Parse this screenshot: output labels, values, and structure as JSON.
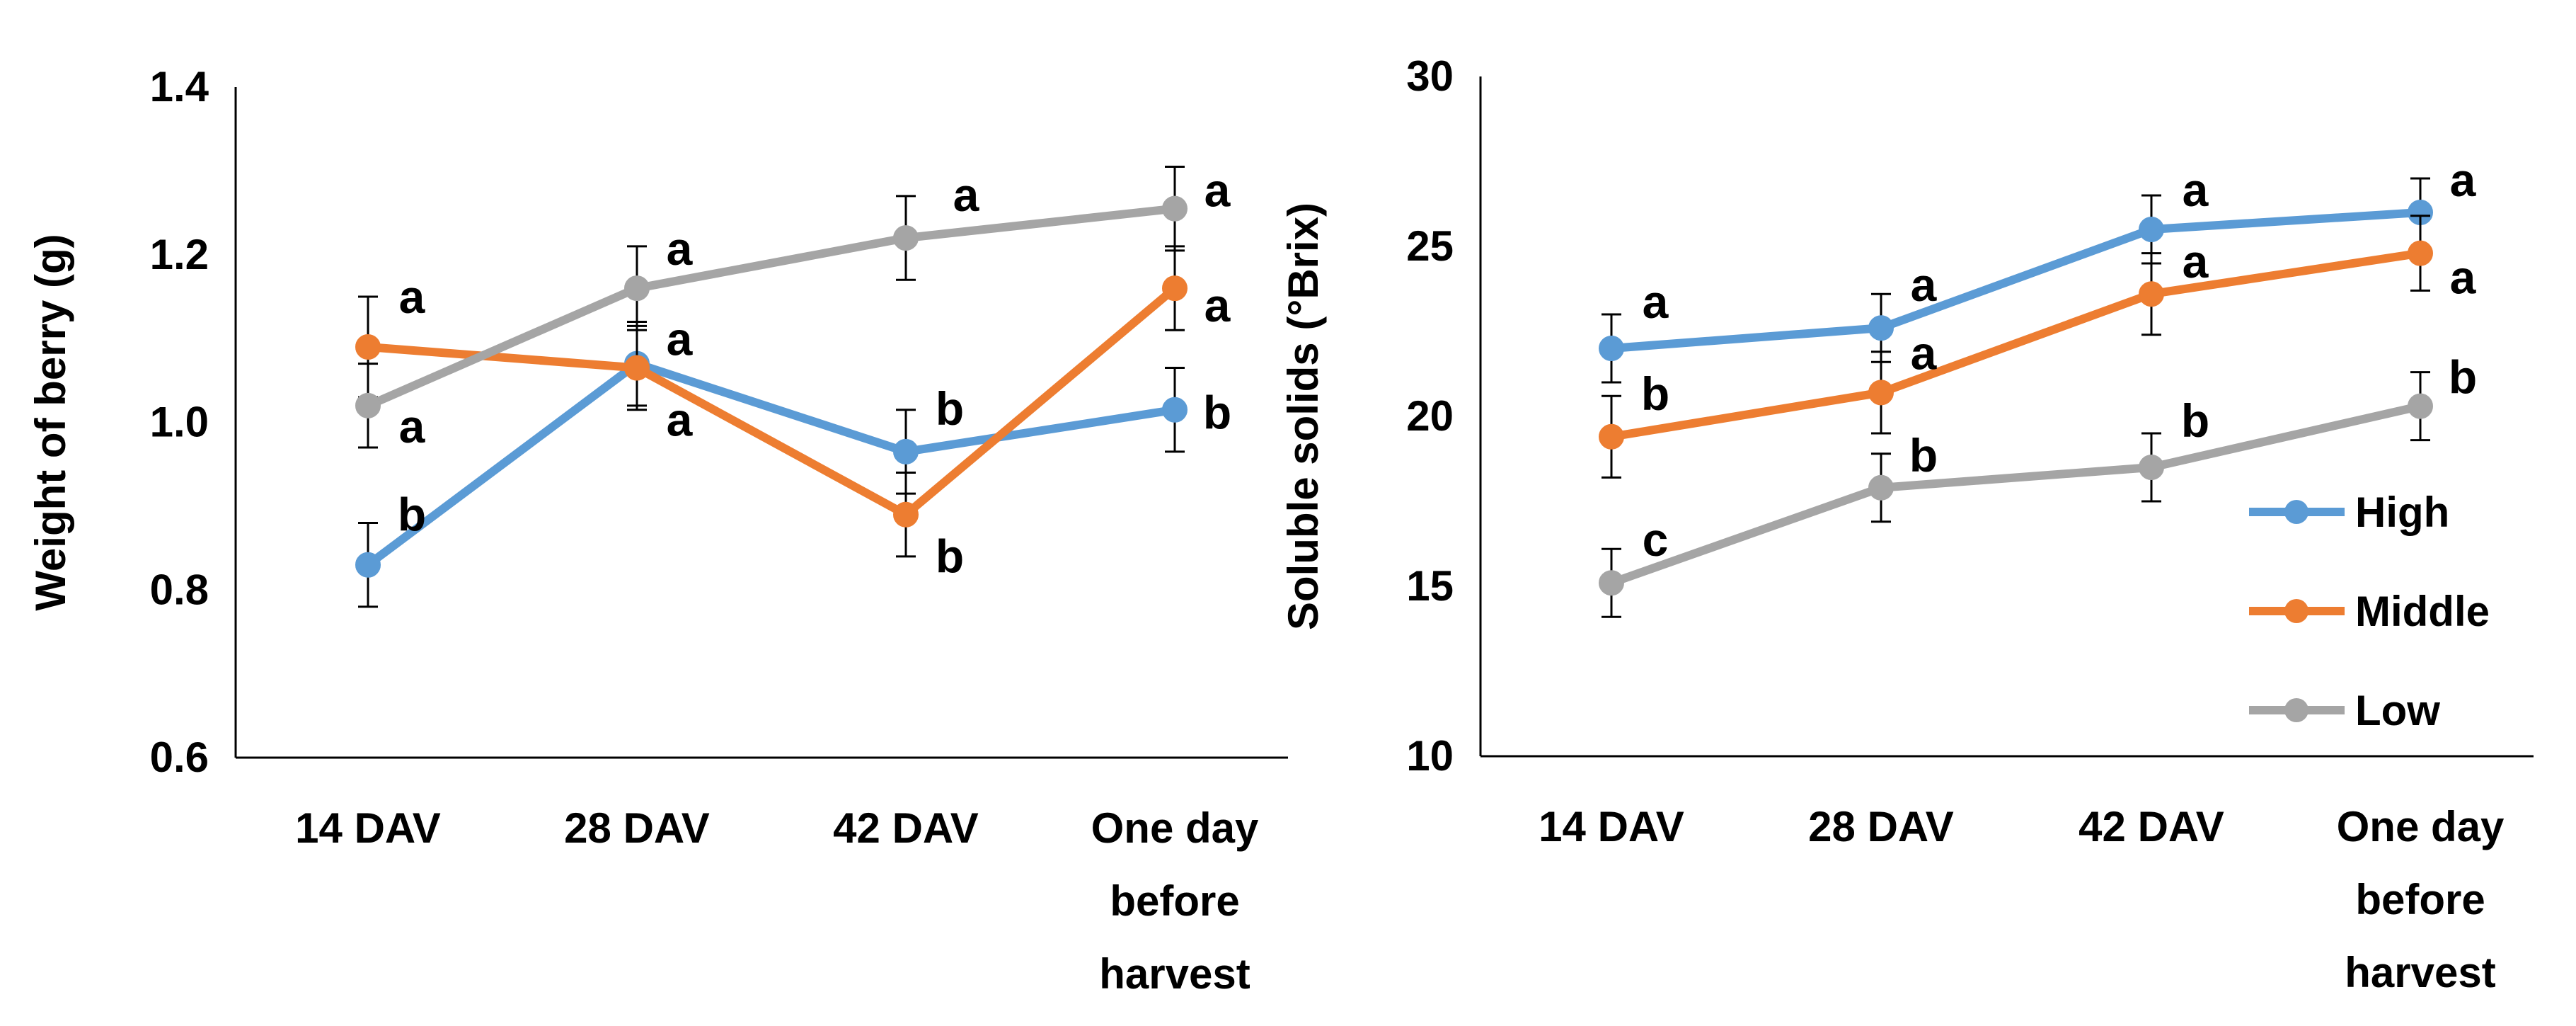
{
  "colors": {
    "High": "#5b9bd5",
    "Middle": "#ed7d31",
    "Low": "#a5a5a5",
    "axis": "#000000"
  },
  "chart_data": [
    {
      "type": "line",
      "ylabel": "Weight of berry (g)",
      "ylim": [
        0.6,
        1.4
      ],
      "yticks": [
        "0.6",
        "0.8",
        "1.0",
        "1.2",
        "1.4"
      ],
      "categories": [
        "14 DAV",
        "28 DAV",
        "42 DAV",
        "One day before harvest"
      ],
      "category_lines": [
        [
          "14 DAV"
        ],
        [
          "28 DAV"
        ],
        [
          "42 DAV"
        ],
        [
          "One day",
          "before",
          "harvest"
        ]
      ],
      "legend": "none",
      "grid": false,
      "series": [
        {
          "key": "High",
          "values": [
            0.83,
            1.07,
            0.965,
            1.015
          ],
          "errors": [
            0.05,
            0.05,
            0.05,
            0.05
          ],
          "labels": [
            "b",
            "a",
            "b",
            "b"
          ]
        },
        {
          "key": "Middle",
          "values": [
            1.09,
            1.065,
            0.89,
            1.16
          ],
          "errors": [
            0.06,
            0.05,
            0.05,
            0.05
          ],
          "labels": [
            "a",
            "a",
            "b",
            "a"
          ]
        },
        {
          "key": "Low",
          "values": [
            1.02,
            1.16,
            1.22,
            1.255
          ],
          "errors": [
            0.05,
            0.05,
            0.05,
            0.05
          ],
          "labels": [
            "a",
            "a",
            "a",
            "a"
          ]
        }
      ]
    },
    {
      "type": "line",
      "ylabel": "Soluble solids (°Brix)",
      "ylim": [
        10,
        30
      ],
      "yticks": [
        "10",
        "15",
        "20",
        "25",
        "30"
      ],
      "categories": [
        "14 DAV",
        "28 DAV",
        "42 DAV",
        "One day before harvest"
      ],
      "category_lines": [
        [
          "14 DAV"
        ],
        [
          "28 DAV"
        ],
        [
          "42 DAV"
        ],
        [
          "One day",
          "before",
          "harvest"
        ]
      ],
      "legend": "right",
      "grid": false,
      "series": [
        {
          "key": "High",
          "name": "High",
          "values": [
            22.0,
            22.6,
            25.5,
            26.0
          ],
          "errors": [
            1.0,
            1.0,
            1.0,
            1.0
          ],
          "labels": [
            "a",
            "a",
            "a",
            "a"
          ]
        },
        {
          "key": "Middle",
          "name": "Middle",
          "values": [
            19.4,
            20.7,
            23.6,
            24.8
          ],
          "errors": [
            1.2,
            1.2,
            1.2,
            1.1
          ],
          "labels": [
            "b",
            "a",
            "a",
            "a"
          ]
        },
        {
          "key": "Low",
          "name": "Low",
          "values": [
            15.1,
            17.9,
            18.5,
            20.3
          ],
          "errors": [
            1.0,
            1.0,
            1.0,
            1.0
          ],
          "labels": [
            "c",
            "b",
            "b",
            "b"
          ]
        }
      ]
    }
  ]
}
